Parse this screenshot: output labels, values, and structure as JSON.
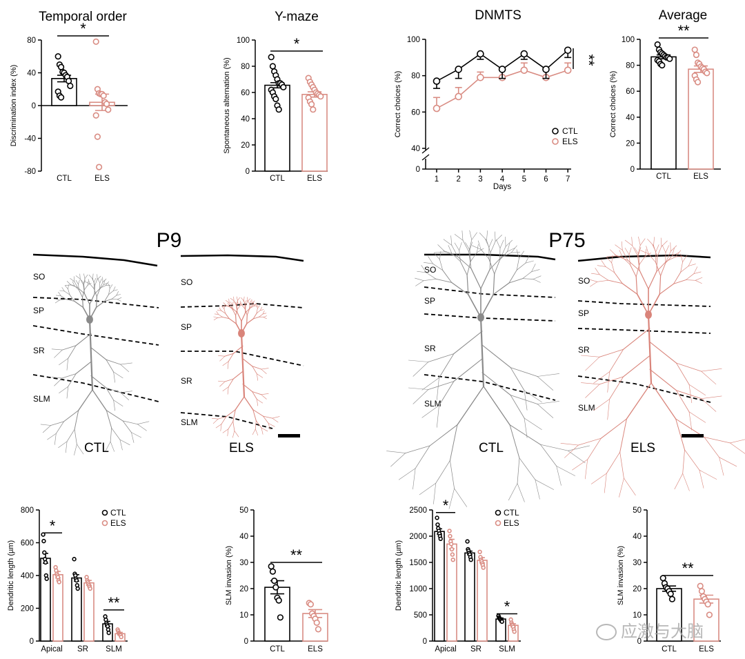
{
  "colors": {
    "ctl": "#000000",
    "els": "#d98c83",
    "ctl_neuron": "#8a8a8a",
    "els_neuron": "#d9847a"
  },
  "panels": {
    "temporal_order": {
      "title": "Temporal order",
      "ylabel": "Discrimination index (%)",
      "yticks": [
        "80",
        "40",
        "0",
        "-40",
        "-80"
      ],
      "categories": [
        "CTL",
        "ELS"
      ],
      "sig": "*"
    },
    "ymaze": {
      "title": "Y-maze",
      "ylabel": "Spontaneous alternation (%)",
      "yticks": [
        "100",
        "80",
        "60",
        "40",
        "20",
        "0"
      ],
      "categories": [
        "CTL",
        "ELS"
      ],
      "sig": "*"
    },
    "dnmts": {
      "title": "DNMTS",
      "ylabel": "Correct choices (%)",
      "xlabel": "Days",
      "yticks": [
        "100",
        "80",
        "60",
        "40",
        "0"
      ],
      "xticks": [
        "1",
        "2",
        "3",
        "4",
        "5",
        "6",
        "7"
      ],
      "legend": [
        "CTL",
        "ELS"
      ],
      "sig": "**"
    },
    "average": {
      "title": "Average",
      "ylabel": "Correct choices (%)",
      "yticks": [
        "100",
        "80",
        "60",
        "40",
        "20",
        "0"
      ],
      "categories": [
        "CTL",
        "ELS"
      ],
      "sig": "**"
    },
    "p9": {
      "title": "P9",
      "ctl_layers": [
        "SO",
        "SP",
        "SR",
        "SLM"
      ],
      "els_layers": [
        "SO",
        "SP",
        "SR",
        "SLM"
      ],
      "ctl_label": "CTL",
      "els_label": "ELS"
    },
    "p75": {
      "title": "P75",
      "ctl_layers": [
        "SO",
        "SP",
        "SR",
        "SLM"
      ],
      "els_layers": [
        "SO",
        "SP",
        "SR",
        "SLM"
      ],
      "ctl_label": "CTL",
      "els_label": "ELS"
    },
    "p9_length": {
      "ylabel": "Dendritic length (µm)",
      "yticks": [
        "800",
        "600",
        "400",
        "200",
        "0"
      ],
      "categories": [
        "Apical",
        "SR",
        "SLM"
      ],
      "legend": [
        "CTL",
        "ELS"
      ],
      "sigs": [
        "*",
        "**"
      ]
    },
    "p9_slm": {
      "ylabel": "SLM invasion (%)",
      "yticks": [
        "50",
        "40",
        "30",
        "20",
        "10",
        "0"
      ],
      "categories": [
        "CTL",
        "ELS"
      ],
      "sig": "**"
    },
    "p75_length": {
      "ylabel": "Dendritic length (µm)",
      "yticks": [
        "2500",
        "2000",
        "1500",
        "1000",
        "500",
        "0"
      ],
      "categories": [
        "Apical",
        "SR",
        "SLM"
      ],
      "legend": [
        "CTL",
        "ELS"
      ],
      "sigs": [
        "*",
        "*"
      ]
    },
    "p75_slm": {
      "ylabel": "SLM invasion (%)",
      "yticks": [
        "50",
        "40",
        "30",
        "20",
        "10",
        "0"
      ],
      "categories": [
        "CTL",
        "ELS"
      ],
      "sig": "**"
    }
  },
  "watermark": "应激与大脑",
  "chart_data": [
    {
      "type": "bar",
      "title": "Temporal order",
      "ylabel": "Discrimination index (%)",
      "ylim": [
        -80,
        80
      ],
      "categories": [
        "CTL",
        "ELS"
      ],
      "values": [
        33,
        4
      ],
      "sem": [
        4,
        10
      ],
      "points": [
        [
          60,
          50,
          47,
          41,
          40,
          37,
          35,
          30,
          24,
          17,
          12,
          10
        ],
        [
          78,
          20,
          15,
          14,
          14,
          12,
          4,
          2,
          -5,
          -12,
          -38,
          -75
        ]
      ]
    },
    {
      "type": "bar",
      "title": "Y-maze",
      "ylabel": "Spontaneous alternation (%)",
      "ylim": [
        0,
        100
      ],
      "categories": [
        "CTL",
        "ELS"
      ],
      "values": [
        65.5,
        58.5
      ],
      "sem": [
        2,
        2
      ],
      "points": [
        [
          87,
          80,
          76,
          73,
          70,
          67,
          67,
          66,
          64,
          62,
          60,
          57,
          55,
          50,
          47
        ],
        [
          71,
          68,
          66,
          64,
          62,
          60,
          59,
          58,
          57,
          56,
          53,
          51,
          47
        ]
      ]
    },
    {
      "type": "line",
      "title": "DNMTS",
      "xlabel": "Days",
      "ylabel": "Correct choices (%)",
      "ylim": [
        0,
        100
      ],
      "x": [
        1,
        2,
        3,
        4,
        5,
        6,
        7
      ],
      "series": [
        {
          "name": "CTL",
          "values": [
            77,
            83.5,
            92,
            83.5,
            92,
            83.5,
            94
          ],
          "sem": [
            4,
            5,
            3,
            5,
            3,
            5,
            4
          ]
        },
        {
          "name": "ELS",
          "values": [
            62,
            68.5,
            79,
            79,
            83,
            79,
            83
          ],
          "sem": [
            6,
            5,
            3,
            5,
            4,
            5,
            4
          ]
        }
      ]
    },
    {
      "type": "bar",
      "title": "Average",
      "ylabel": "Correct choices (%)",
      "ylim": [
        0,
        100
      ],
      "categories": [
        "CTL",
        "ELS"
      ],
      "values": [
        86.5,
        77
      ],
      "sem": [
        1.5,
        2.5
      ],
      "points": [
        [
          96,
          92,
          90,
          89,
          88,
          87,
          86,
          86,
          85,
          84,
          83,
          81,
          80
        ],
        [
          92,
          88,
          82,
          81,
          79,
          78,
          77,
          75,
          74,
          72,
          69,
          67
        ]
      ]
    },
    {
      "type": "bar",
      "ylabel": "Dendritic length (µm)",
      "ylim": [
        0,
        800
      ],
      "categories": [
        "Apical",
        "SR",
        "SLM"
      ],
      "series": [
        {
          "name": "CTL",
          "values": [
            505,
            385,
            105
          ],
          "sem": [
            30,
            20,
            15
          ],
          "points": [
            [
              650,
              610,
              540,
              500,
              480,
              400,
              380
            ],
            [
              500,
              410,
              400,
              380,
              370,
              340,
              320
            ],
            [
              150,
              130,
              110,
              100,
              90,
              70,
              50
            ]
          ]
        },
        {
          "name": "ELS",
          "values": [
            405,
            355,
            45
          ],
          "sem": [
            20,
            15,
            8
          ],
          "points": [
            [
              450,
              430,
              410,
              400,
              390,
              370,
              360
            ],
            [
              390,
              370,
              360,
              350,
              340,
              330,
              320
            ],
            [
              70,
              60,
              50,
              45,
              40,
              35,
              25
            ]
          ]
        }
      ]
    },
    {
      "type": "bar",
      "ylabel": "SLM invasion (%)",
      "ylim": [
        0,
        50
      ],
      "categories": [
        "CTL",
        "ELS"
      ],
      "values": [
        20.5,
        10.5
      ],
      "sem": [
        2.5,
        1.5
      ],
      "points": [
        [
          28.5,
          26.5,
          23,
          20.5,
          16.5,
          15.5,
          9
        ],
        [
          14.5,
          14,
          10.5,
          9.5,
          8.5,
          7,
          4.5
        ]
      ]
    },
    {
      "type": "bar",
      "ylabel": "Dendritic length (µm)",
      "ylim": [
        0,
        2500
      ],
      "categories": [
        "Apical",
        "SR",
        "SLM"
      ],
      "series": [
        {
          "name": "CTL",
          "values": [
            2090,
            1680,
            420
          ],
          "sem": [
            50,
            35,
            20
          ],
          "points": [
            [
              2350,
              2220,
              2150,
              2100,
              2050,
              2000,
              1950
            ],
            [
              1900,
              1750,
              1720,
              1680,
              1650,
              1600,
              1550
            ],
            [
              480,
              450,
              430,
              420,
              400,
              380,
              370
            ]
          ]
        },
        {
          "name": "ELS",
          "values": [
            1850,
            1540,
            300
          ],
          "sem": [
            90,
            50,
            30
          ],
          "points": [
            [
              2100,
              2000,
              1900,
              1850,
              1750,
              1650,
              1550
            ],
            [
              1700,
              1600,
              1550,
              1520,
              1480,
              1450,
              1400
            ],
            [
              410,
              350,
              320,
              300,
              270,
              220,
              180
            ]
          ]
        }
      ]
    },
    {
      "type": "bar",
      "ylabel": "SLM invasion (%)",
      "ylim": [
        0,
        50
      ],
      "categories": [
        "CTL",
        "ELS"
      ],
      "values": [
        20,
        16
      ],
      "sem": [
        1,
        1.5
      ],
      "points": [
        [
          24,
          22,
          20.5,
          20,
          19,
          18,
          16
        ],
        [
          21,
          19,
          17,
          16,
          15,
          14,
          10
        ]
      ]
    }
  ]
}
